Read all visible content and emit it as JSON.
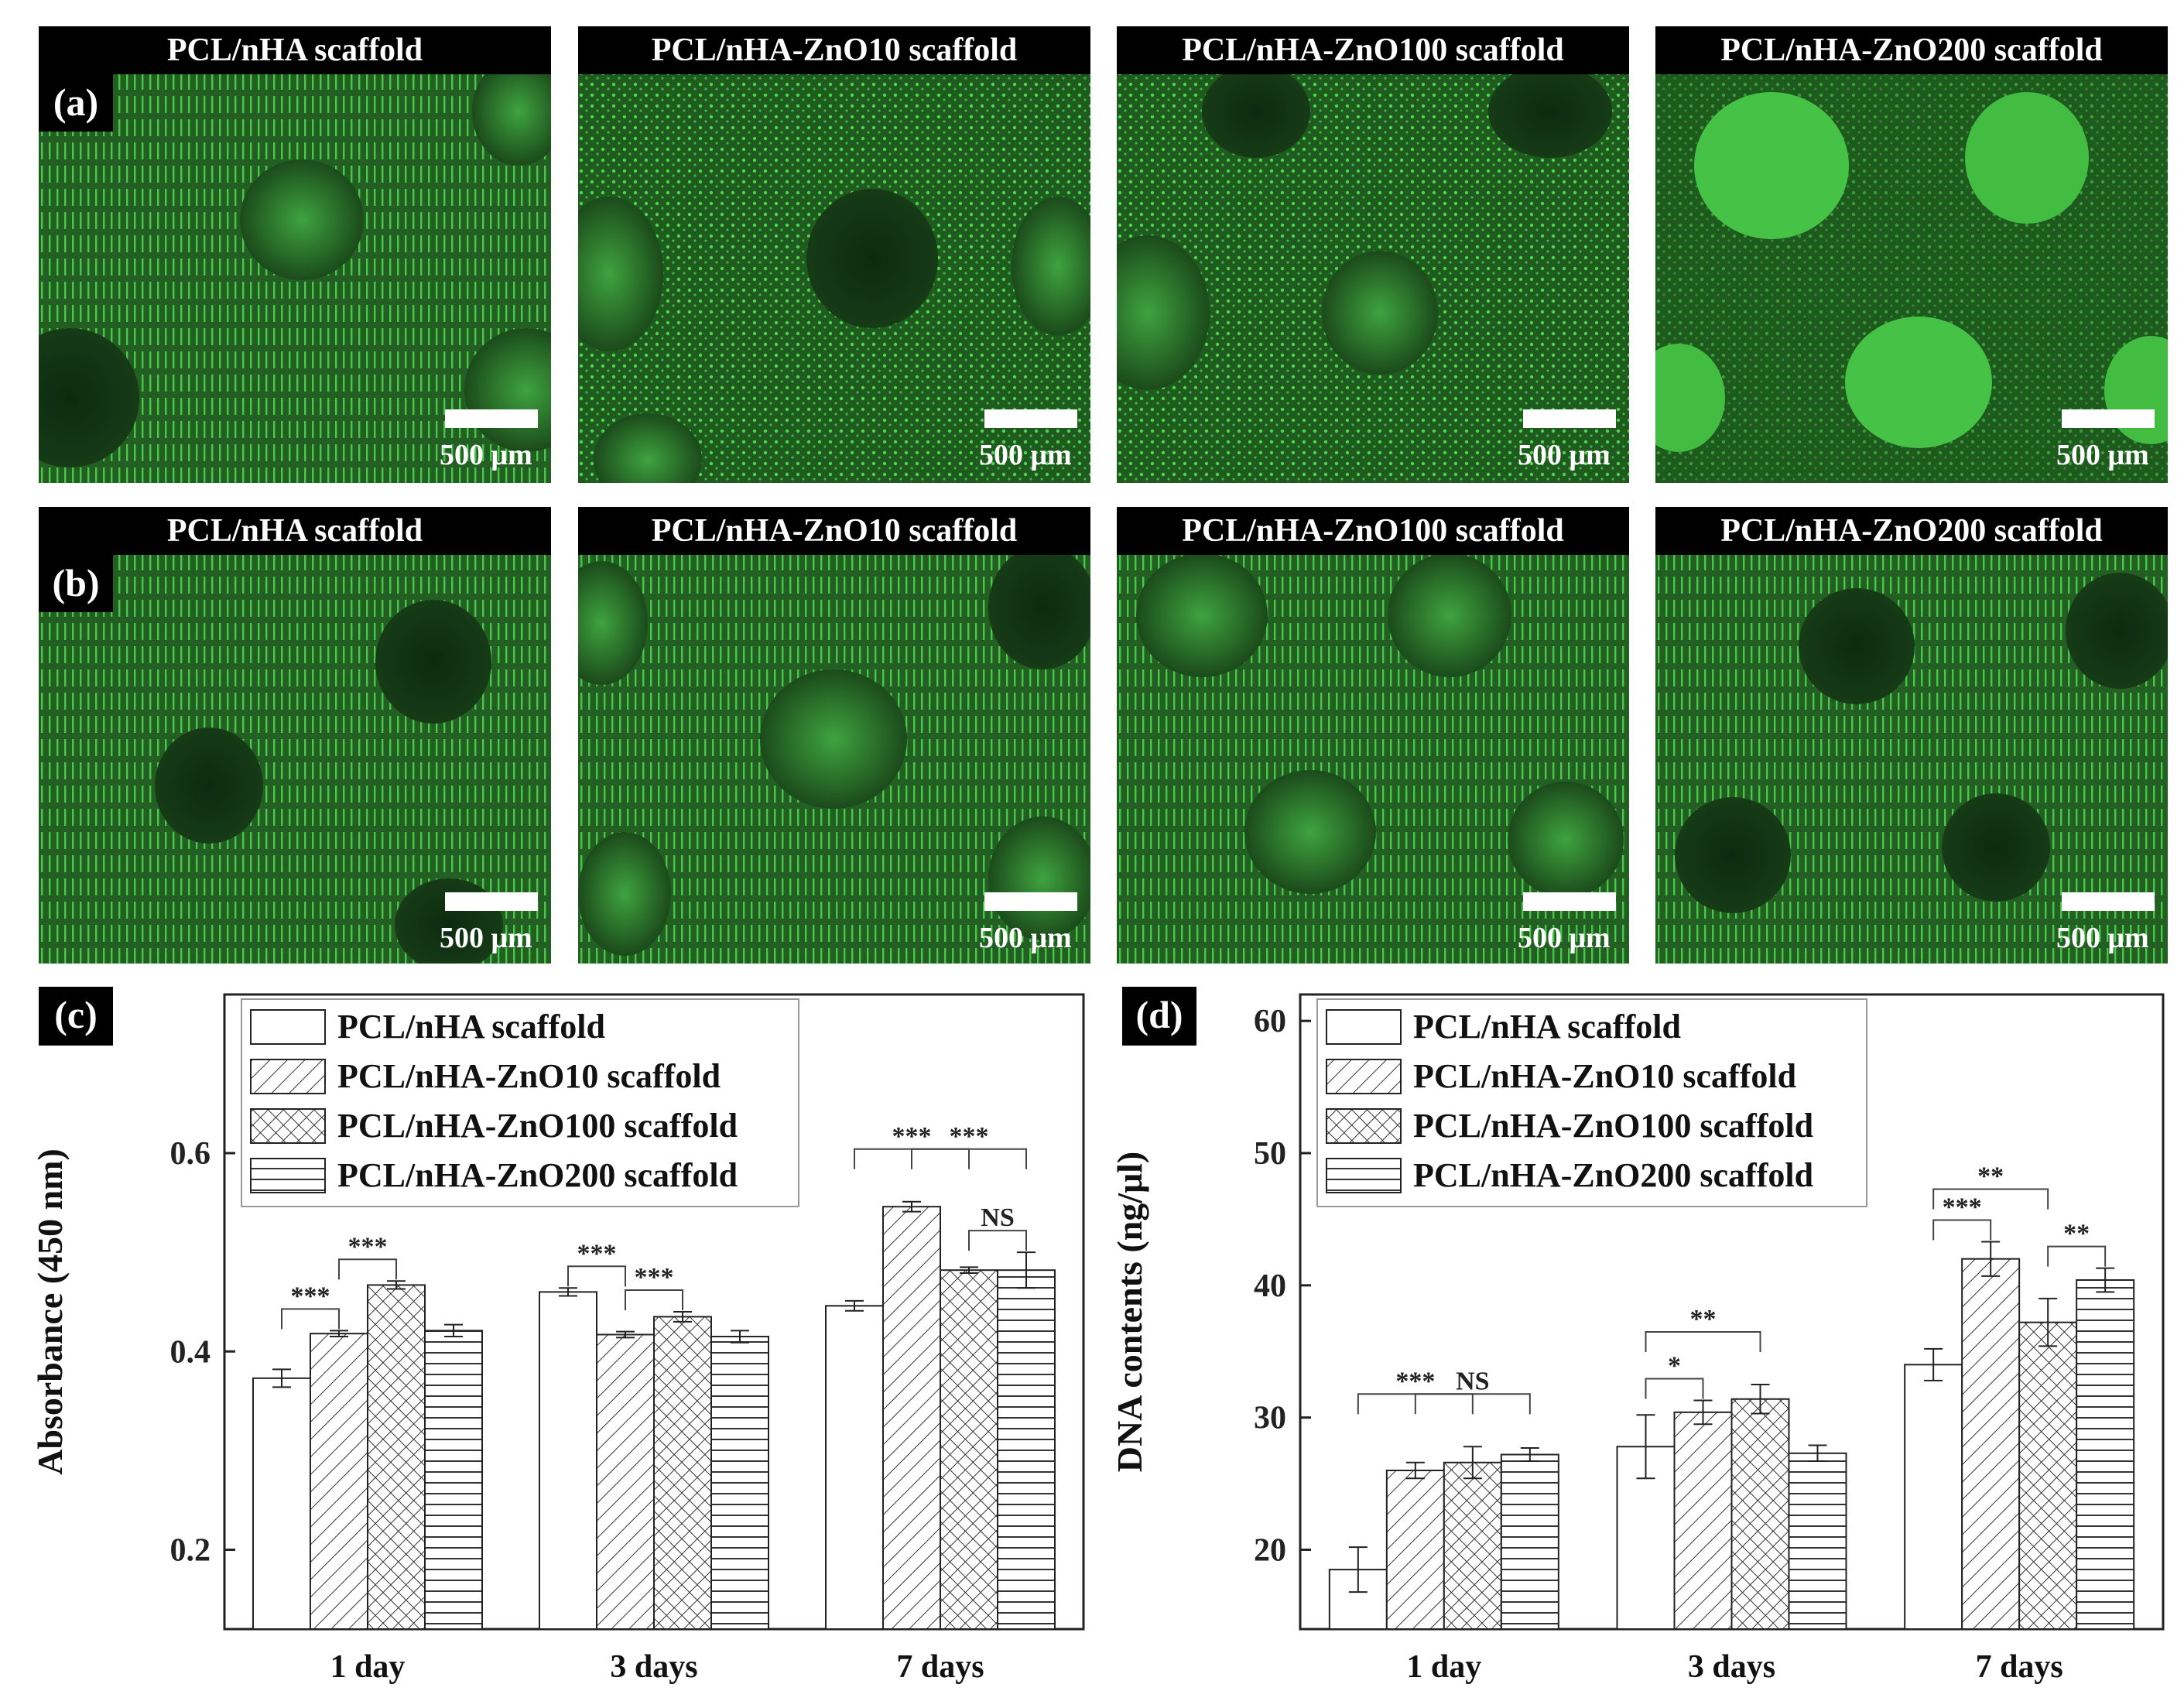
{
  "row_a": {
    "letter": "(a)",
    "panels": [
      {
        "title": "PCL/nHA scaffold",
        "scale": "500 μm"
      },
      {
        "title": "PCL/nHA-ZnO10 scaffold",
        "scale": "500 μm"
      },
      {
        "title": "PCL/nHA-ZnO100 scaffold",
        "scale": "500 μm"
      },
      {
        "title": "PCL/nHA-ZnO200 scaffold",
        "scale": "500 μm"
      }
    ]
  },
  "row_b": {
    "letter": "(b)",
    "panels": [
      {
        "title": "PCL/nHA scaffold",
        "scale": "500 μm"
      },
      {
        "title": "PCL/nHA-ZnO10 scaffold",
        "scale": "500 μm"
      },
      {
        "title": "PCL/nHA-ZnO100 scaffold",
        "scale": "500 μm"
      },
      {
        "title": "PCL/nHA-ZnO200 scaffold",
        "scale": "500 μm"
      }
    ]
  },
  "chart_data": [
    {
      "type": "bar",
      "panel_letter": "(c)",
      "ylabel": "Absorbance (450 nm)",
      "ylim": [
        0.12,
        0.76
      ],
      "yticks": [
        "0.2",
        "0.4",
        "0.6"
      ],
      "categories": [
        "1 day",
        "3 days",
        "7 days"
      ],
      "legend_position": "top-left",
      "series": [
        {
          "name": "PCL/nHA scaffold",
          "values": [
            0.373,
            0.46,
            0.446
          ],
          "errors": [
            0.009,
            0.004,
            0.005
          ]
        },
        {
          "name": "PCL/nHA-ZnO10 scaffold",
          "values": [
            0.418,
            0.417,
            0.546
          ],
          "errors": [
            0.003,
            0.003,
            0.005
          ]
        },
        {
          "name": "PCL/nHA-ZnO100 scaffold",
          "values": [
            0.467,
            0.435,
            0.482
          ],
          "errors": [
            0.004,
            0.005,
            0.003
          ]
        },
        {
          "name": "PCL/nHA-ZnO200 scaffold",
          "values": [
            0.421,
            0.415,
            0.482
          ],
          "errors": [
            0.006,
            0.006,
            0.018
          ]
        }
      ],
      "significance": [
        {
          "label": "***",
          "group": 0,
          "a": 0,
          "b": 1
        },
        {
          "label": "***",
          "group": 0,
          "a": 1,
          "b": 2
        },
        {
          "label": "***",
          "group": 1,
          "a": 0,
          "b": 1
        },
        {
          "label": "***",
          "group": 1,
          "a": 1,
          "b": 2
        },
        {
          "label": "***",
          "group": 2,
          "a": 0,
          "b": 2
        },
        {
          "label": "***",
          "group": 2,
          "a": 1,
          "b": 3
        },
        {
          "label": "NS",
          "group": 2,
          "a": 2,
          "b": 3
        }
      ]
    },
    {
      "type": "bar",
      "panel_letter": "(d)",
      "ylabel": "DNA contents (ng/μl)",
      "ylim": [
        14,
        62
      ],
      "yticks": [
        "20",
        "30",
        "40",
        "50",
        "60"
      ],
      "categories": [
        "1 day",
        "3 days",
        "7 days"
      ],
      "legend_position": "top-left",
      "series": [
        {
          "name": "PCL/nHA scaffold",
          "values": [
            18.5,
            27.8,
            34.0
          ],
          "errors": [
            1.7,
            2.4,
            1.2
          ]
        },
        {
          "name": "PCL/nHA-ZnO10 scaffold",
          "values": [
            26.0,
            30.4,
            42.0
          ],
          "errors": [
            0.6,
            0.9,
            1.3
          ]
        },
        {
          "name": "PCL/nHA-ZnO100 scaffold",
          "values": [
            26.6,
            31.4,
            37.2
          ],
          "errors": [
            1.2,
            1.1,
            1.8
          ]
        },
        {
          "name": "PCL/nHA-ZnO200 scaffold",
          "values": [
            27.2,
            27.3,
            40.4
          ],
          "errors": [
            0.5,
            0.6,
            0.9
          ]
        }
      ],
      "significance": [
        {
          "label": "***",
          "group": 0,
          "a": 0,
          "b": 2
        },
        {
          "label": "NS",
          "group": 0,
          "a": 1,
          "b": 3
        },
        {
          "label": "*",
          "group": 1,
          "a": 0,
          "b": 1
        },
        {
          "label": "**",
          "group": 1,
          "a": 0,
          "b": 2
        },
        {
          "label": "***",
          "group": 2,
          "a": 0,
          "b": 1
        },
        {
          "label": "**",
          "group": 2,
          "a": 0,
          "b": 2
        },
        {
          "label": "**",
          "group": 2,
          "a": 2,
          "b": 3
        }
      ]
    }
  ]
}
